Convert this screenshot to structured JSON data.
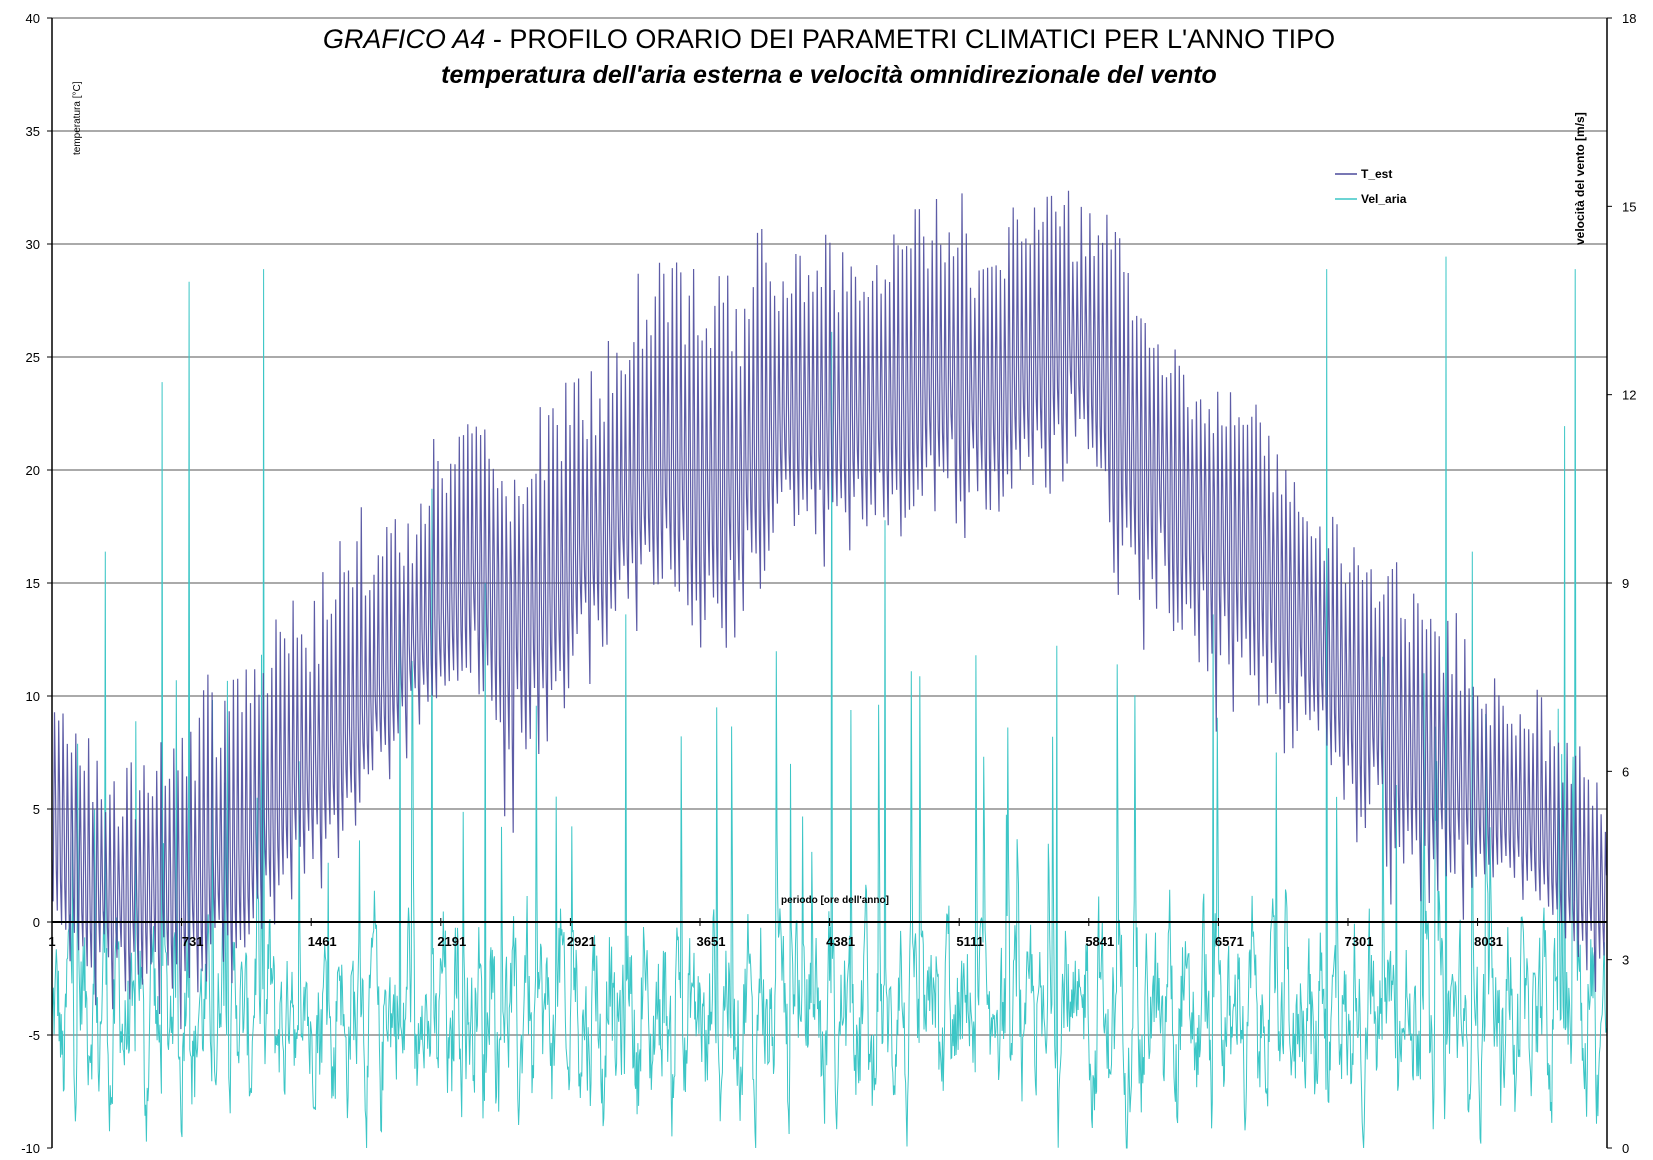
{
  "chart_data": {
    "type": "line",
    "title_prefix": "GRAFICO A4",
    "title_sep": " - ",
    "title_main": "PROFILO ORARIO DEI PARAMETRI CLIMATICI PER L'ANNO TIPO",
    "subtitle": "temperatura dell'aria esterna e velocità omnidirezionale del vento",
    "xlabel": "periodo [ore dell'anno]",
    "ylabel_left": "temperatura [°C]",
    "ylabel_right": "velocità del vento [m/s]",
    "x_ticks": [
      1,
      731,
      1461,
      2191,
      2921,
      3651,
      4381,
      5111,
      5841,
      6571,
      7301,
      8031
    ],
    "xlim": [
      1,
      8760
    ],
    "ylim_left": [
      -10,
      40
    ],
    "yticks_left": [
      -10,
      -5,
      0,
      5,
      10,
      15,
      20,
      25,
      30,
      35,
      40
    ],
    "ylim_right": [
      0,
      18
    ],
    "yticks_right": [
      0,
      3,
      6,
      9,
      12,
      15,
      18
    ],
    "grid": "horizontal",
    "legend_position": "top-right",
    "series": [
      {
        "name": "T_est",
        "axis": "left",
        "color": "#4b4a9c",
        "x_hours": [
          1,
          180,
          365,
          550,
          730,
          915,
          1095,
          1280,
          1460,
          1645,
          1825,
          2010,
          2190,
          2375,
          2555,
          2740,
          2920,
          3105,
          3285,
          3470,
          3650,
          3835,
          4015,
          4200,
          4380,
          4565,
          4745,
          4930,
          5110,
          5295,
          5475,
          5660,
          5840,
          6025,
          6205,
          6390,
          6570,
          6755,
          6935,
          7120,
          7300,
          7485,
          7665,
          7850,
          8030,
          8215,
          8395,
          8580,
          8760
        ],
        "daily_mean": [
          5.5,
          2.5,
          1.5,
          2.5,
          2.0,
          3.0,
          3.5,
          6.0,
          7.5,
          8.5,
          10.5,
          12.5,
          14.0,
          16.5,
          15.0,
          14.5,
          16.5,
          18.0,
          19.5,
          21.0,
          20.5,
          20.0,
          22.0,
          23.5,
          22.5,
          23.0,
          24.0,
          24.5,
          24.0,
          24.0,
          25.0,
          26.0,
          26.0,
          22.5,
          21.0,
          19.5,
          18.5,
          17.5,
          15.5,
          13.0,
          11.0,
          10.0,
          8.5,
          7.0,
          6.0,
          5.5,
          4.5,
          2.5,
          2.0
        ],
        "daily_max_peak": [
          11.7,
          8.5,
          7.0,
          9.0,
          9.5,
          13.0,
          13.5,
          15.8,
          15.5,
          20.2,
          20.5,
          18.5,
          25.3,
          23.5,
          20.0,
          24.2,
          24.5,
          26.2,
          30.5,
          32.5,
          28.0,
          30.5,
          32.0,
          31.0,
          32.5,
          31.0,
          31.5,
          34.2,
          33.5,
          30.5,
          35.5,
          33.0,
          33.5,
          32.0,
          27.5,
          25.5,
          24.5,
          24.0,
          20.5,
          20.0,
          18.5,
          17.5,
          16.3,
          15.0,
          12.0,
          10.5,
          10.5,
          9.5,
          5.8
        ],
        "daily_min_low": [
          -1.5,
          -4.5,
          -5.0,
          -5.0,
          -5.5,
          -3.5,
          -4.0,
          0.0,
          0.5,
          2.0,
          5.0,
          7.0,
          7.0,
          9.5,
          2.5,
          4.0,
          9.5,
          10.0,
          12.0,
          12.5,
          11.0,
          10.5,
          14.0,
          15.5,
          14.0,
          14.5,
          15.0,
          16.0,
          16.5,
          15.0,
          17.0,
          18.0,
          19.0,
          12.0,
          11.0,
          9.5,
          6.0,
          8.5,
          7.0,
          4.5,
          2.0,
          1.0,
          0.0,
          -0.5,
          -0.5,
          0.5,
          -0.5,
          -4.5,
          -4.5
        ]
      },
      {
        "name": "Vel_aria",
        "axis": "right",
        "color": "#3cc6c6",
        "typical_range": [
          0,
          5
        ],
        "peaks": [
          {
            "hour": 300,
            "value": 9.5
          },
          {
            "hour": 620,
            "value": 12.2
          },
          {
            "hour": 770,
            "value": 13.8
          },
          {
            "hour": 1190,
            "value": 14.0
          },
          {
            "hour": 1960,
            "value": 8.5
          },
          {
            "hour": 2140,
            "value": 10.5
          },
          {
            "hour": 2440,
            "value": 9.0
          },
          {
            "hour": 3230,
            "value": 8.5
          },
          {
            "hour": 4390,
            "value": 13.0
          },
          {
            "hour": 4690,
            "value": 10.0
          },
          {
            "hour": 5660,
            "value": 8.0
          },
          {
            "hour": 6540,
            "value": 8.5
          },
          {
            "hour": 7180,
            "value": 14.0
          },
          {
            "hour": 7850,
            "value": 14.2
          },
          {
            "hour": 8000,
            "value": 9.5
          },
          {
            "hour": 8580,
            "value": 14.0
          },
          {
            "hour": 8520,
            "value": 11.5
          }
        ]
      }
    ]
  }
}
